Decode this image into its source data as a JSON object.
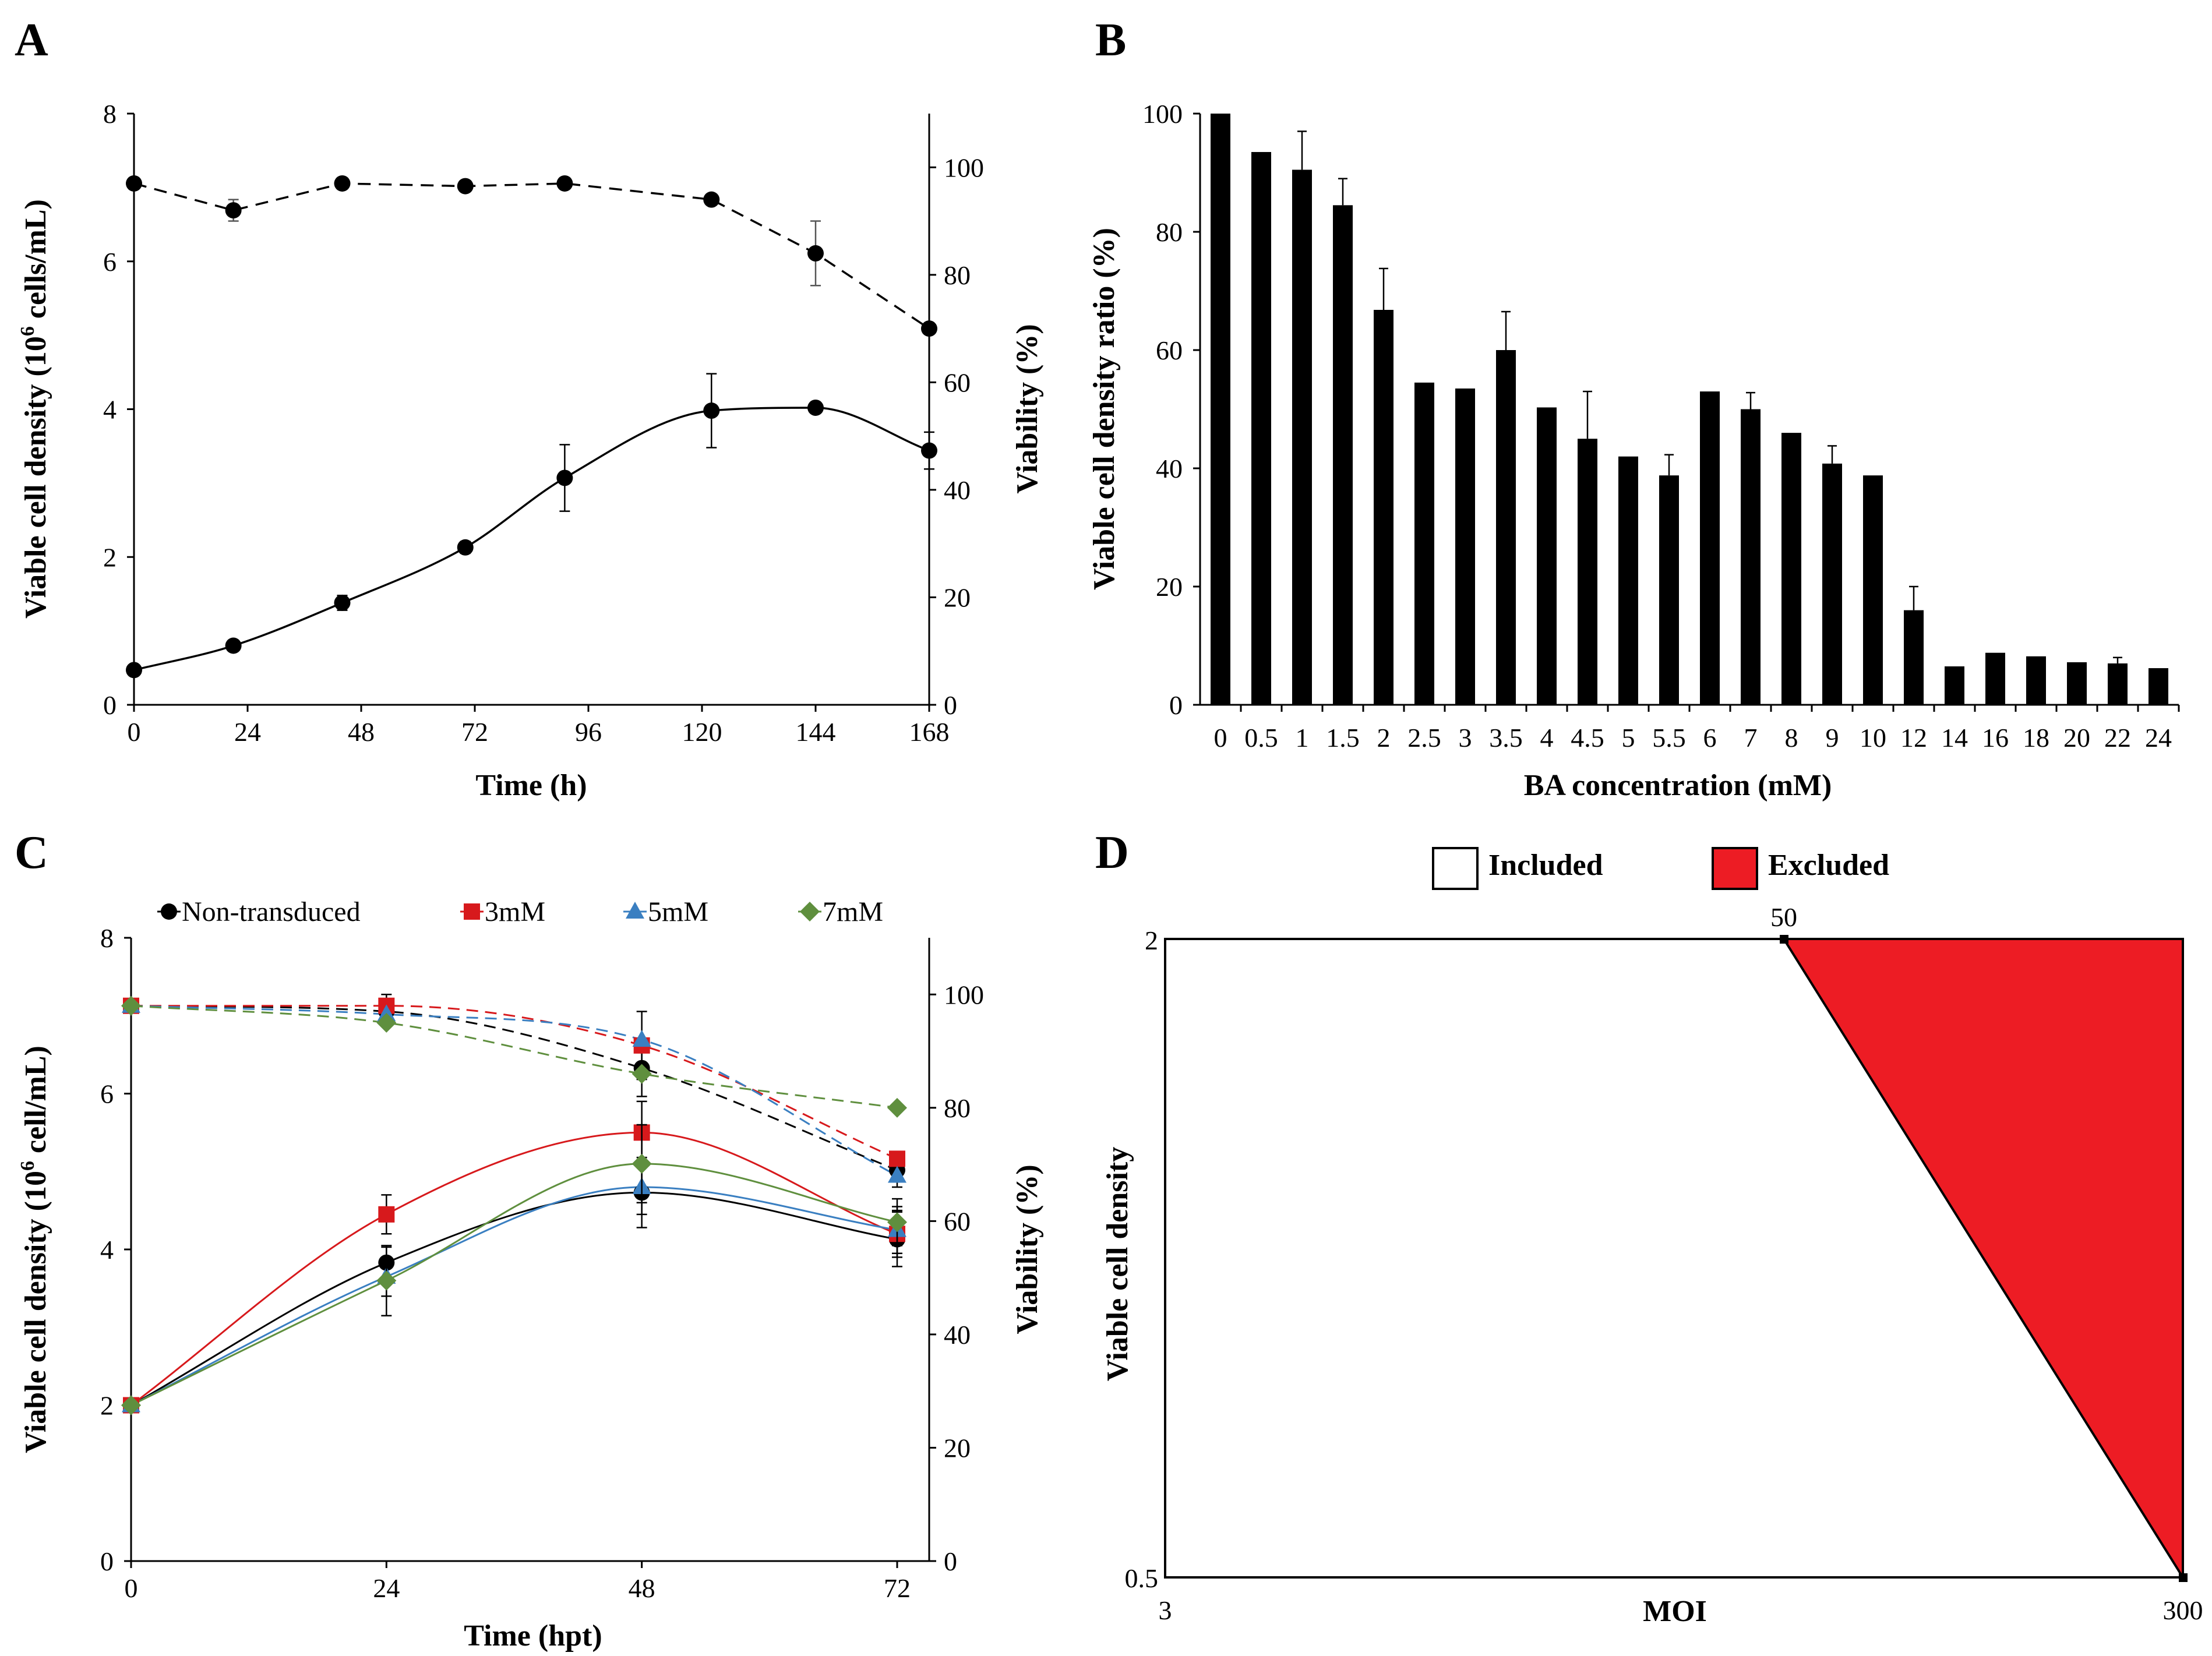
{
  "chart_data": [
    {
      "panel": "A",
      "type": "line",
      "x": [
        0,
        21,
        44,
        70,
        91,
        122,
        144,
        168
      ],
      "series": [
        {
          "name": "Viable cell density",
          "axis": "left",
          "style": "solid",
          "values": [
            0.47,
            0.8,
            1.38,
            2.13,
            3.07,
            3.98,
            4.02,
            3.44
          ],
          "errors": [
            0.03,
            0.04,
            0.1,
            0.08,
            0.45,
            0.5,
            0.04,
            0.25
          ]
        },
        {
          "name": "Viability",
          "axis": "right",
          "style": "dashed",
          "values": [
            97,
            92,
            97,
            96.5,
            97,
            94,
            84,
            70
          ],
          "errors": [
            0,
            2,
            0,
            0,
            0,
            0,
            6,
            0
          ]
        }
      ],
      "x_ticks": [
        "0",
        "24",
        "48",
        "72",
        "96",
        "120",
        "144",
        "168"
      ],
      "y_ticks": [
        "0",
        "2",
        "4",
        "6",
        "8"
      ],
      "y2_ticks": [
        "0",
        "20",
        "40",
        "60",
        "80",
        "100"
      ],
      "xlabel": "Time (h)",
      "ylabel_main": "Viable cell density (10",
      "ylabel_sup": "6",
      "ylabel_tail": " cells/mL)",
      "y2label": "Viability (%)",
      "xlim": [
        0,
        168
      ],
      "ylim": [
        0,
        8
      ],
      "y2lim": [
        0,
        110
      ]
    },
    {
      "panel": "B",
      "type": "bar",
      "categories": [
        "0",
        "0.5",
        "1",
        "1.5",
        "2",
        "2.5",
        "3",
        "3.5",
        "4",
        "4.5",
        "5",
        "5.5",
        "6",
        "7",
        "8",
        "9",
        "10",
        "12",
        "14",
        "16",
        "18",
        "20",
        "22",
        "24"
      ],
      "values": [
        100,
        93.5,
        90.5,
        84.5,
        66.8,
        54.5,
        53.5,
        60,
        50.3,
        45,
        42,
        38.8,
        53,
        50,
        46,
        40.8,
        38.8,
        16,
        6.5,
        8.8,
        8.2,
        7.2,
        7,
        6.2
      ],
      "errors": [
        0,
        0,
        6.5,
        4.5,
        7,
        0,
        0,
        6.5,
        0,
        8,
        0,
        3.5,
        0,
        2.8,
        0,
        3,
        0,
        4,
        0,
        0,
        0,
        0,
        1,
        0
      ],
      "y_ticks": [
        "0",
        "20",
        "40",
        "60",
        "80",
        "100"
      ],
      "xlabel": "BA concentration (mM)",
      "ylabel": "Viable cell density ratio (%)",
      "ylim": [
        0,
        100
      ]
    },
    {
      "panel": "C",
      "type": "line",
      "x": [
        0,
        24,
        48,
        72
      ],
      "series": [
        {
          "name": "Non-transduced",
          "color": "#000000",
          "marker": "circle",
          "density": [
            2.0,
            3.83,
            4.73,
            4.13
          ],
          "density_err": [
            0,
            0.2,
            0.45,
            0.35
          ],
          "viability": [
            98,
            97,
            87,
            69
          ],
          "viability_err": [
            0,
            0,
            5,
            3
          ]
        },
        {
          "name": "3mM",
          "color": "#d7191c",
          "marker": "square",
          "density": [
            2.0,
            4.45,
            5.5,
            4.2
          ],
          "density_err": [
            0,
            0.25,
            0.4,
            0.3
          ],
          "viability": [
            98,
            98,
            91,
            71
          ],
          "viability_err": [
            0,
            2,
            6,
            0
          ]
        },
        {
          "name": "5mM",
          "color": "#3a7fc1",
          "marker": "triangle",
          "density": [
            2.0,
            3.65,
            4.8,
            4.25
          ],
          "density_err": [
            0,
            0.25,
            0.35,
            0.3
          ],
          "viability": [
            98,
            96.5,
            92,
            68
          ],
          "viability_err": [
            0,
            0,
            0,
            0
          ]
        },
        {
          "name": "7mM",
          "color": "#5f8f3e",
          "marker": "diamond",
          "density": [
            2.0,
            3.6,
            5.1,
            4.35
          ],
          "density_err": [
            0,
            0.45,
            0.5,
            0.3
          ],
          "viability": [
            98,
            95,
            86,
            80
          ],
          "viability_err": [
            0,
            0,
            0,
            0
          ]
        }
      ],
      "x_ticks": [
        "0",
        "24",
        "48",
        "72"
      ],
      "y_ticks": [
        "0",
        "2",
        "4",
        "6",
        "8"
      ],
      "y2_ticks": [
        "0",
        "20",
        "40",
        "60",
        "80",
        "100"
      ],
      "xlabel": "Time (hpt)",
      "ylabel_main": "Viable cell density (10",
      "ylabel_sup": "6",
      "ylabel_tail": " cell/mL)",
      "y2label": "Viability (%)",
      "xlim": [
        0,
        72
      ],
      "ylim": [
        0,
        8
      ],
      "y2lim": [
        0,
        110
      ]
    },
    {
      "panel": "D",
      "type": "area",
      "legend": [
        "Included",
        "Excluded"
      ],
      "colors": {
        "included": "#ffffff",
        "excluded": "#ed1c24"
      },
      "x_labels": {
        "min": "3",
        "max": "300",
        "point": "50"
      },
      "y_labels": {
        "min": "0.5",
        "max": "2"
      },
      "excluded_region": [
        [
          "50",
          "2"
        ],
        [
          "300",
          "2"
        ],
        [
          "300",
          "0.5"
        ]
      ],
      "xlabel": "MOI",
      "ylabel": "Viable cell density"
    }
  ],
  "panels": {
    "a": "A",
    "b": "B",
    "c": "C",
    "d": "D"
  }
}
